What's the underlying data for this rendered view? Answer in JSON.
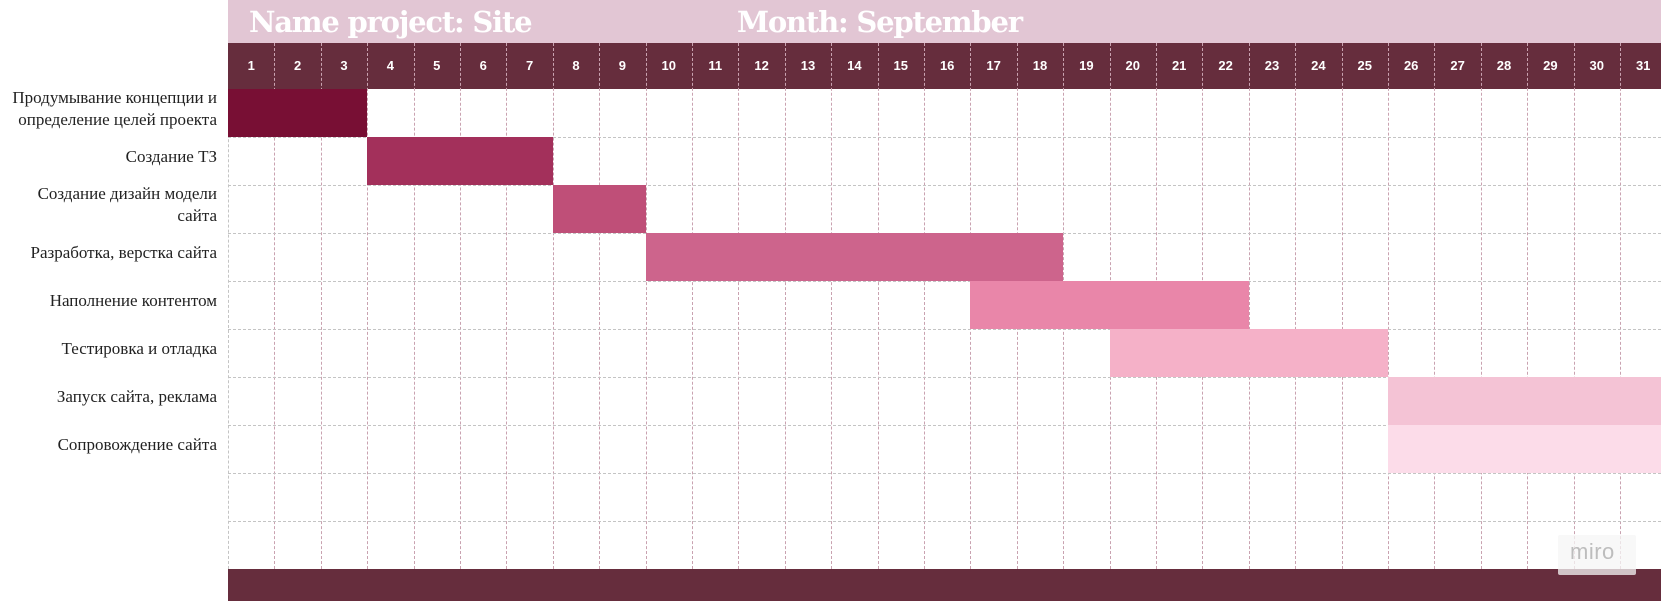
{
  "header": {
    "project_label": "Name project: Site",
    "month_label": "Month: September"
  },
  "days": [
    "1",
    "2",
    "3",
    "4",
    "5",
    "6",
    "7",
    "8",
    "9",
    "10",
    "11",
    "12",
    "13",
    "14",
    "15",
    "16",
    "17",
    "18",
    "19",
    "20",
    "21",
    "22",
    "23",
    "24",
    "25",
    "26",
    "27",
    "28",
    "29",
    "30",
    "31"
  ],
  "tasks": [
    {
      "label": "Продумывание концепции и\nопределение целей проекта",
      "start_day": 1,
      "end_day": 3,
      "color": "#780f34"
    },
    {
      "label": "Создание ТЗ",
      "start_day": 4,
      "end_day": 7,
      "color": "#a3305b"
    },
    {
      "label": "Создание дизайн модели\nсайта",
      "start_day": 8,
      "end_day": 9,
      "color": "#bf4f78"
    },
    {
      "label": "Разработка, верстка сайта",
      "start_day": 10,
      "end_day": 18,
      "color": "#cd648c"
    },
    {
      "label": "Наполнение контентом",
      "start_day": 17,
      "end_day": 22,
      "color": "#e986a9"
    },
    {
      "label": "Тестировка и отладка",
      "start_day": 20,
      "end_day": 25,
      "color": "#f5b1c8"
    },
    {
      "label": "Запуск сайта, реклама",
      "start_day": 26,
      "end_day": 31,
      "color": "#f4c3d5"
    },
    {
      "label": "Сопровождение сайта",
      "start_day": 26,
      "end_day": 31,
      "color": "#fcdce9"
    }
  ],
  "colors": {
    "header_band": "#e2c6d4",
    "days_band": "#662d3d",
    "footer_band": "#662d3d"
  },
  "watermark": "miro"
}
